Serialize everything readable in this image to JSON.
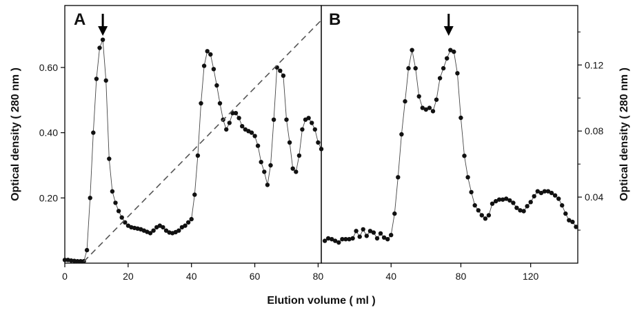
{
  "figure": {
    "xlabel": "Elution volume ( ml )",
    "ylabel_left": "Optical density ( 280 nm )",
    "ylabel_right": "Optical density ( 280 nm )"
  },
  "chart_data": [
    {
      "type": "scatter",
      "panel": "A",
      "xlim": [
        0,
        81
      ],
      "ylim": [
        0,
        0.79
      ],
      "x_ticks": [
        0,
        20,
        40,
        60,
        80
      ],
      "x_tick_labels": [
        "0",
        "20",
        "40",
        "60",
        "80"
      ],
      "y_ticks": [
        0.2,
        0.4,
        0.6
      ],
      "y_tick_labels": [
        "0.20",
        "0.40",
        "0.60"
      ],
      "y_axis_side": "left",
      "arrow_x": 12,
      "series": [
        {
          "style": "markers-with-line",
          "color": "#111111",
          "x": [
            0,
            1,
            2,
            3,
            4,
            5,
            6,
            7,
            8,
            9,
            10,
            11,
            12,
            13,
            14,
            15,
            16,
            17,
            18,
            19,
            20,
            21,
            22,
            23,
            24,
            25,
            26,
            27,
            28,
            29,
            30,
            31,
            32,
            33,
            34,
            35,
            36,
            37,
            38,
            39,
            40,
            41,
            42,
            43,
            44,
            45,
            46,
            47,
            48,
            49,
            50,
            51,
            52,
            53,
            54,
            55,
            56,
            57,
            58,
            59,
            60,
            61,
            62,
            63,
            64,
            65,
            66,
            67,
            68,
            69,
            70,
            71,
            72,
            73,
            74,
            75,
            76,
            77,
            78,
            79,
            80,
            81
          ],
          "y": [
            0.01,
            0.01,
            0.008,
            0.007,
            0.006,
            0.006,
            0.006,
            0.04,
            0.2,
            0.4,
            0.565,
            0.66,
            0.685,
            0.56,
            0.32,
            0.22,
            0.185,
            0.16,
            0.14,
            0.125,
            0.115,
            0.11,
            0.108,
            0.106,
            0.104,
            0.1,
            0.096,
            0.092,
            0.1,
            0.11,
            0.115,
            0.11,
            0.1,
            0.094,
            0.092,
            0.095,
            0.1,
            0.11,
            0.115,
            0.125,
            0.135,
            0.21,
            0.33,
            0.49,
            0.605,
            0.65,
            0.64,
            0.595,
            0.545,
            0.49,
            0.44,
            0.41,
            0.43,
            0.46,
            0.46,
            0.445,
            0.42,
            0.41,
            0.405,
            0.4,
            0.39,
            0.36,
            0.31,
            0.28,
            0.24,
            0.3,
            0.44,
            0.6,
            0.59,
            0.575,
            0.44,
            0.37,
            0.29,
            0.28,
            0.33,
            0.41,
            0.44,
            0.445,
            0.43,
            0.41,
            0.37,
            0.35
          ]
        },
        {
          "style": "dashed-line",
          "color": "#555555",
          "x": [
            6,
            81
          ],
          "y": [
            0.005,
            0.745
          ]
        }
      ]
    },
    {
      "type": "scatter",
      "panel": "B",
      "xlim": [
        0,
        147
      ],
      "ylim": [
        0,
        0.156
      ],
      "x_ticks": [
        40,
        80,
        120
      ],
      "x_tick_labels": [
        "40",
        "80",
        "120"
      ],
      "y_ticks": [
        0.04,
        0.08,
        0.12
      ],
      "y_tick_labels": [
        "0.04",
        "0.08",
        "0.12"
      ],
      "y_axis_side": "right",
      "arrow_x": 73,
      "series": [
        {
          "style": "markers-with-line",
          "color": "#111111",
          "x": [
            2,
            4,
            6,
            8,
            10,
            12,
            14,
            16,
            18,
            20,
            22,
            24,
            26,
            28,
            30,
            32,
            34,
            36,
            38,
            40,
            42,
            44,
            46,
            48,
            50,
            52,
            54,
            56,
            58,
            60,
            62,
            64,
            66,
            68,
            70,
            72,
            74,
            76,
            78,
            80,
            82,
            84,
            86,
            88,
            90,
            92,
            94,
            96,
            98,
            100,
            102,
            104,
            106,
            108,
            110,
            112,
            114,
            116,
            118,
            120,
            122,
            124,
            126,
            128,
            130,
            132,
            134,
            136,
            138,
            140,
            142,
            144,
            146
          ],
          "y": [
            0.0135,
            0.015,
            0.0145,
            0.0135,
            0.0125,
            0.0145,
            0.0145,
            0.0145,
            0.015,
            0.0195,
            0.016,
            0.0205,
            0.0165,
            0.0195,
            0.0185,
            0.015,
            0.018,
            0.0155,
            0.0145,
            0.017,
            0.03,
            0.052,
            0.078,
            0.098,
            0.118,
            0.129,
            0.118,
            0.101,
            0.094,
            0.093,
            0.094,
            0.092,
            0.099,
            0.112,
            0.118,
            0.124,
            0.129,
            0.128,
            0.115,
            0.088,
            0.065,
            0.052,
            0.043,
            0.035,
            0.032,
            0.029,
            0.027,
            0.029,
            0.036,
            0.0375,
            0.0385,
            0.0385,
            0.039,
            0.038,
            0.0365,
            0.0335,
            0.032,
            0.0315,
            0.0345,
            0.037,
            0.0405,
            0.0435,
            0.0425,
            0.0435,
            0.0435,
            0.0425,
            0.041,
            0.039,
            0.035,
            0.03,
            0.026,
            0.025,
            0.022
          ]
        }
      ]
    }
  ]
}
